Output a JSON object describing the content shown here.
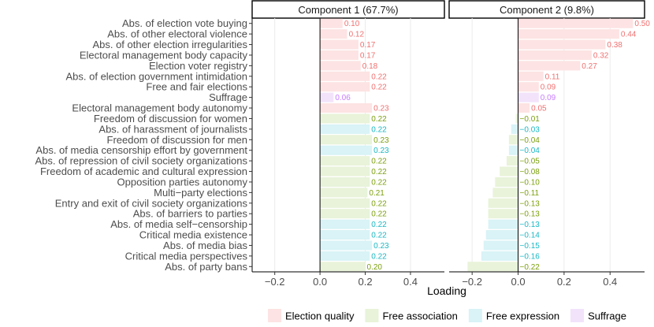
{
  "chart_data": {
    "type": "bar",
    "orientation": "horizontal",
    "xlabel": "Loading",
    "xlim": [
      -0.3,
      0.55
    ],
    "xticks": [
      -0.2,
      0.0,
      0.2,
      0.4
    ],
    "xtick_labels": [
      "−0.2",
      "0.0",
      "0.2",
      "0.4"
    ],
    "grid": true,
    "legend_position": "bottom",
    "groups": [
      {
        "name": "Election quality",
        "color": "#fde3e3"
      },
      {
        "name": "Free association",
        "color": "#e8f3d9"
      },
      {
        "name": "Free expression",
        "color": "#d9f3f6"
      },
      {
        "name": "Suffrage",
        "color": "#f2e3fb"
      }
    ],
    "group_label_colors": {
      "Election quality": "#f07070",
      "Free association": "#7ca00e",
      "Free expression": "#1ab8c4",
      "Suffrage": "#c77cff"
    },
    "categories": [
      "Abs. of election vote buying",
      "Abs. of other electoral violence",
      "Abs. of other election irregularities",
      "Electoral management body capacity",
      "Election voter registry",
      "Abs. of  election government intimidation",
      "Free and fair elections",
      "Suffrage",
      "Electoral management body autonomy",
      "Freedom of discussion for women",
      "Abs. of harassment of journalists",
      "Freedom of discussion for men",
      "Abs. of media censorship effort by government",
      "Abs. of repression of civil society organizations",
      "Freedom of academic and cultural expression",
      "Opposition parties autonomy",
      "Multi−party elections",
      "Entry and exit of civil society organizations",
      "Abs. of barriers to parties",
      "Abs. of media self−censorship",
      "Critical media existence",
      "Abs. of media bias",
      "Critical media perspectives",
      "Abs. of party bans"
    ],
    "category_groups": [
      "Election quality",
      "Election quality",
      "Election quality",
      "Election quality",
      "Election quality",
      "Election quality",
      "Election quality",
      "Suffrage",
      "Election quality",
      "Free association",
      "Free expression",
      "Free association",
      "Free expression",
      "Free association",
      "Free association",
      "Free association",
      "Free association",
      "Free association",
      "Free association",
      "Free expression",
      "Free expression",
      "Free expression",
      "Free expression",
      "Free association"
    ],
    "series": [
      {
        "name": "Component 1 (67.7%)",
        "values": [
          0.1,
          0.12,
          0.17,
          0.17,
          0.18,
          0.22,
          0.22,
          0.06,
          0.23,
          0.22,
          0.22,
          0.23,
          0.23,
          0.22,
          0.22,
          0.22,
          0.21,
          0.22,
          0.22,
          0.22,
          0.22,
          0.23,
          0.22,
          0.2
        ],
        "labels": [
          "0.10",
          "0.12",
          "0.17",
          "0.17",
          "0.18",
          "0.22",
          "0.22",
          "0.06",
          "0.23",
          "0.22",
          "0.22",
          "0.23",
          "0.23",
          "0.22",
          "0.22",
          "0.22",
          "0.21",
          "0.22",
          "0.22",
          "0.22",
          "0.22",
          "0.23",
          "0.22",
          "0.20"
        ]
      },
      {
        "name": "Component 2 (9.8%)",
        "values": [
          0.5,
          0.44,
          0.38,
          0.32,
          0.27,
          0.11,
          0.09,
          0.09,
          0.05,
          -0.01,
          -0.03,
          -0.04,
          -0.04,
          -0.05,
          -0.08,
          -0.1,
          -0.11,
          -0.13,
          -0.13,
          -0.13,
          -0.14,
          -0.15,
          -0.16,
          -0.22
        ],
        "labels": [
          "0.50",
          "0.44",
          "0.38",
          "0.32",
          "0.27",
          "0.11",
          "0.09",
          "0.09",
          "0.05",
          "−0.01",
          "−0.03",
          "−0.04",
          "−0.04",
          "−0.05",
          "−0.08",
          "−0.10",
          "−0.11",
          "−0.13",
          "−0.13",
          "−0.13",
          "−0.14",
          "−0.15",
          "−0.16",
          "−0.22"
        ]
      }
    ]
  }
}
